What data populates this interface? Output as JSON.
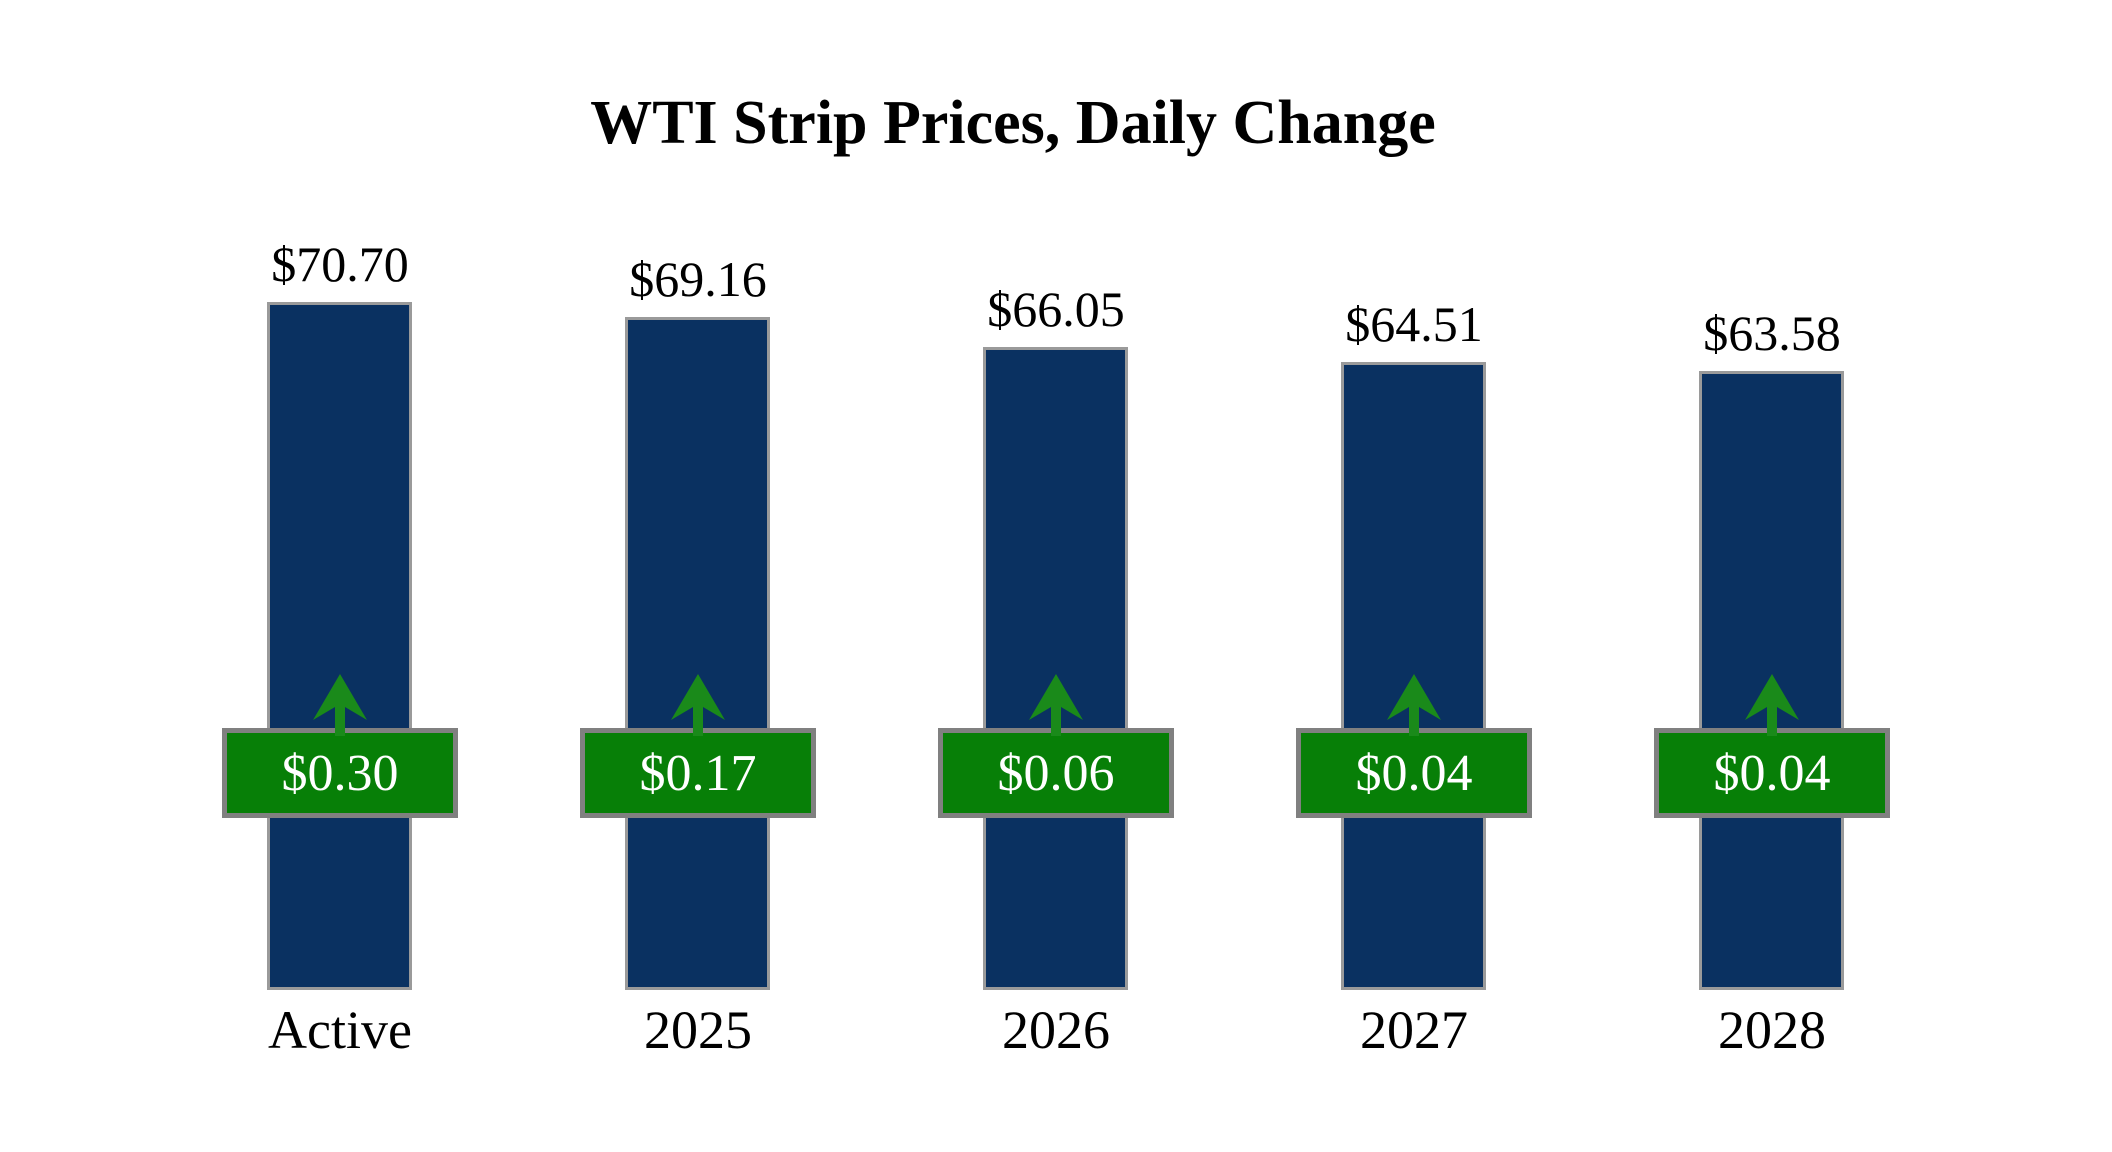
{
  "title": "WTI Strip Prices, Daily Change",
  "chart_data": {
    "type": "bar",
    "title": "WTI Strip Prices, Daily Change",
    "categories": [
      "Active",
      "2025",
      "2026",
      "2027",
      "2028"
    ],
    "series": [
      {
        "name": "strip_price_usd",
        "values": [
          70.7,
          69.16,
          66.05,
          64.51,
          63.58
        ]
      },
      {
        "name": "daily_change_usd",
        "values": [
          0.3,
          0.17,
          0.06,
          0.04,
          0.04
        ]
      }
    ],
    "price_labels": [
      "$70.70",
      "$69.16",
      "$66.05",
      "$64.51",
      "$63.58"
    ],
    "change_labels": [
      "$0.30",
      "$0.17",
      "$0.06",
      "$0.04",
      "$0.04"
    ],
    "change_direction": [
      "up",
      "up",
      "up",
      "up",
      "up"
    ],
    "xlabel": "",
    "ylabel": "",
    "ylim": [
      0,
      72
    ],
    "axes_hidden": true,
    "grid": false,
    "legend": false,
    "colors": {
      "background": "#FFFFFF",
      "bar_fill": "#0A3161",
      "bar_border": "#9A9A9A",
      "badge_fill": "#077F07",
      "badge_border": "#808080",
      "badge_text": "#FFFFFF",
      "arrow": "#1A8A1A",
      "text": "#000000"
    },
    "icons": [
      "up-arrow-icon"
    ]
  }
}
